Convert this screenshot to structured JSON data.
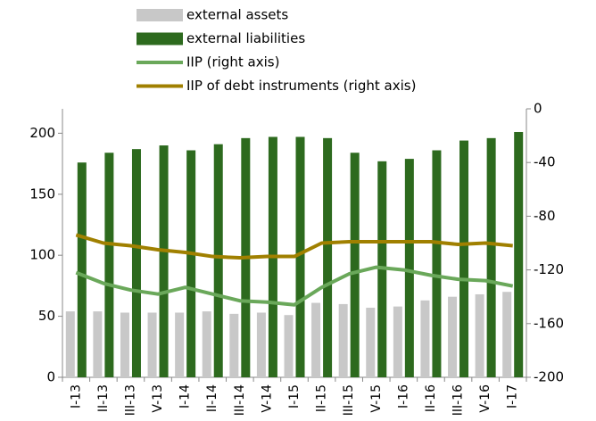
{
  "chart_data": {
    "type": "bar-line",
    "categories": [
      "I-13",
      "II-13",
      "III-13",
      "V-13",
      "I-14",
      "II-14",
      "III-14",
      "V-14",
      "I-15",
      "II-15",
      "III-15",
      "V-15",
      "I-16",
      "II-16",
      "III-16",
      "V-16",
      "I-17"
    ],
    "series": [
      {
        "name": "external assets",
        "color": "#c8c8c8",
        "type": "bar",
        "values": [
          54,
          54,
          53,
          53,
          53,
          54,
          52,
          53,
          51,
          61,
          60,
          57,
          58,
          63,
          66,
          68,
          70
        ]
      },
      {
        "name": "external liabilities",
        "color": "#2d6a1e",
        "type": "bar",
        "values": [
          176,
          184,
          187,
          190,
          186,
          191,
          196,
          197,
          197,
          196,
          184,
          177,
          179,
          186,
          194,
          196,
          201
        ]
      },
      {
        "name": "IIP (right axis)",
        "color": "#6aa85a",
        "type": "line",
        "axis": "y2",
        "values": [
          -122,
          -130,
          -135,
          -138,
          -133,
          -138,
          -143,
          -144,
          -146,
          -133,
          -123,
          -118,
          -120,
          -124,
          -127,
          -128,
          -132
        ]
      },
      {
        "name": "IIP of debt instruments (right axis)",
        "color": "#a08000",
        "type": "line",
        "axis": "y2",
        "values": [
          -94,
          -100,
          -102,
          -105,
          -107,
          -110,
          -111,
          -110,
          -110,
          -100,
          -99,
          -99,
          -99,
          -99,
          -101,
          -100,
          -102
        ]
      }
    ],
    "ylim": [
      0,
      220
    ],
    "yticks": [
      0,
      50,
      100,
      150,
      200
    ],
    "y2lim": [
      -200,
      0
    ],
    "y2ticks": [
      -200,
      -160,
      -120,
      -80,
      -40,
      0
    ],
    "legend": "top"
  }
}
